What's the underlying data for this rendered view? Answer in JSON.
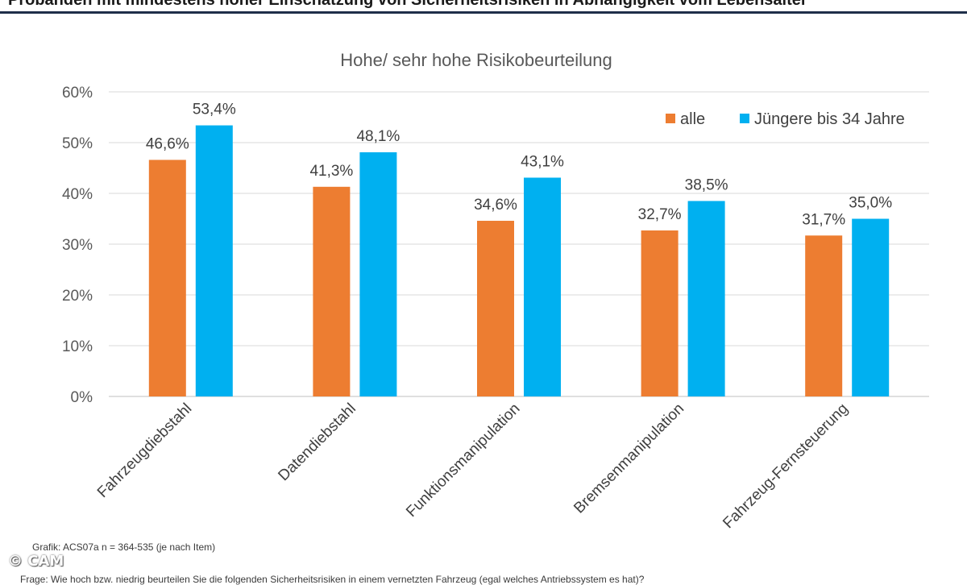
{
  "header": {
    "title": "Probanden mit mindestens hoher Einschätzung von Sicherheitsrisiken in Abhängigkeit vom Lebensalter"
  },
  "chart_data": {
    "type": "bar",
    "title": "Hohe/ sehr hohe Risikobeurteilung",
    "categories": [
      "Fahrzeugdiebstahl",
      "Datendiebstahl",
      "Funktionsmanipulation",
      "Bremsenmanipulation",
      "Fahrzeug-Fernsteuerung"
    ],
    "series": [
      {
        "name": "alle",
        "values": [
          46.6,
          41.3,
          34.6,
          32.7,
          31.7
        ],
        "labels": [
          "46,6%",
          "41,3%",
          "34,6%",
          "32,7%",
          "31,7%"
        ],
        "color": "#ED7D31"
      },
      {
        "name": "Jüngere bis 34 Jahre",
        "values": [
          53.4,
          48.1,
          43.1,
          38.5,
          35.0
        ],
        "labels": [
          "53,4%",
          "48,1%",
          "43,1%",
          "38,5%",
          "35,0%"
        ],
        "color": "#00B0F0"
      }
    ],
    "yticks": [
      0,
      10,
      20,
      30,
      40,
      50,
      60
    ],
    "ytick_labels": [
      "0%",
      "10%",
      "20%",
      "30%",
      "40%",
      "50%",
      "60%"
    ],
    "ylim": [
      0,
      60
    ],
    "grid": true,
    "legend": "top-right",
    "xlabel": "",
    "ylabel": ""
  },
  "footer": {
    "source": "Grafik: ACS07a   n = 364-535 (je nach Item)",
    "question": "Frage: Wie hoch bzw. niedrig beurteilen Sie die folgenden Sicherheitsrisiken in einem vernetzten Fahrzeug (egal welches Antriebssystem es hat)?",
    "copyright": "© CAM"
  }
}
